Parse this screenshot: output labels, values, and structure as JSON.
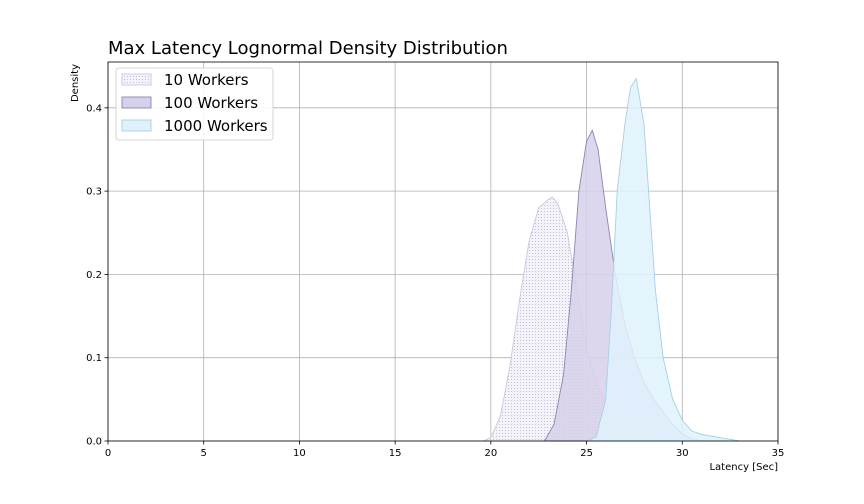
{
  "chart_data": {
    "type": "area",
    "title": "Max Latency Lognormal Density Distribution",
    "xlabel": "Latency [Sec]",
    "ylabel": "Density",
    "xlim": [
      0,
      35
    ],
    "ylim": [
      0,
      0.455
    ],
    "xticks": [
      0,
      5,
      10,
      15,
      20,
      25,
      30,
      35
    ],
    "yticks": [
      0.0,
      0.1,
      0.2,
      0.3,
      0.4
    ],
    "xtick_labels": [
      "0",
      "5",
      "10",
      "15",
      "20",
      "25",
      "30",
      "35"
    ],
    "ytick_labels": [
      "0.0",
      "0.1",
      "0.2",
      "0.3",
      "0.4"
    ],
    "grid": true,
    "legend_position": "top-left",
    "series": [
      {
        "name": "10 Workers",
        "fill": "#efedf6",
        "stroke": "#cbc6e0",
        "pattern": "dots",
        "x": [
          19.6,
          20.0,
          20.5,
          21.0,
          21.5,
          22.0,
          22.5,
          23.0,
          23.2,
          23.5,
          24.0,
          24.5,
          25.0,
          25.5,
          26.0,
          26.5,
          27.0,
          27.5,
          28.0,
          28.5,
          29.0,
          29.5,
          30.0
        ],
        "y": [
          0.0,
          0.004,
          0.03,
          0.09,
          0.17,
          0.24,
          0.28,
          0.29,
          0.293,
          0.285,
          0.25,
          0.18,
          0.11,
          0.07,
          0.045,
          0.03,
          0.025,
          0.022,
          0.018,
          0.012,
          0.006,
          0.002,
          0.0
        ]
      },
      {
        "name": "100 Workers",
        "fill": "#d6d0ea",
        "stroke": "#8c84b4",
        "pattern": "none",
        "x": [
          22.8,
          23.3,
          23.8,
          24.2,
          24.6,
          25.0,
          25.3,
          25.6,
          26.0,
          26.5,
          27.0,
          27.5,
          28.0,
          28.5,
          29.0,
          29.5,
          30.0,
          30.5,
          31.0
        ],
        "y": [
          0.0,
          0.02,
          0.08,
          0.18,
          0.3,
          0.36,
          0.373,
          0.35,
          0.28,
          0.2,
          0.14,
          0.1,
          0.07,
          0.05,
          0.035,
          0.02,
          0.008,
          0.003,
          0.0
        ]
      },
      {
        "name": "1000 Workers",
        "fill": "#dff2fb",
        "stroke": "#a6cfe6",
        "pattern": "none",
        "x": [
          25.0,
          25.5,
          26.0,
          26.3,
          26.6,
          27.0,
          27.3,
          27.6,
          28.0,
          28.3,
          28.6,
          29.0,
          29.5,
          30.0,
          30.5,
          31.0,
          31.5,
          32.0,
          32.5,
          33.0
        ],
        "y": [
          0.0,
          0.005,
          0.05,
          0.16,
          0.3,
          0.38,
          0.425,
          0.435,
          0.38,
          0.28,
          0.18,
          0.1,
          0.05,
          0.025,
          0.012,
          0.008,
          0.006,
          0.004,
          0.002,
          0.0
        ]
      }
    ]
  }
}
